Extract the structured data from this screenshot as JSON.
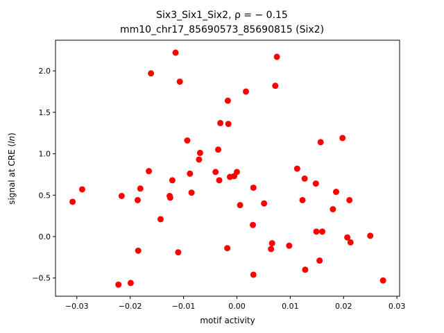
{
  "chart_data": {
    "type": "scatter",
    "title_line1": "Six3_Six1_Six2, ρ = − 0.15",
    "title_line2": "mm10_chr17_85690573_85690815 (Six2)",
    "xlabel": "motif activity",
    "ylabel": "signal at CRE (ln)",
    "xlim": [
      -0.034,
      0.0305
    ],
    "ylim": [
      -0.72,
      2.37
    ],
    "xticks": [
      -0.03,
      -0.02,
      -0.01,
      0.0,
      0.01,
      0.02,
      0.03
    ],
    "xtick_labels": [
      "−0.03",
      "−0.02",
      "−0.01",
      "0.00",
      "0.01",
      "0.02",
      "0.03"
    ],
    "yticks": [
      -0.5,
      0.0,
      0.5,
      1.0,
      1.5,
      2.0
    ],
    "ytick_labels": [
      "−0.5",
      "0.0",
      "0.5",
      "1.0",
      "1.5",
      "2.0"
    ],
    "marker_color": "#ff0000",
    "points": [
      {
        "x": -0.0308,
        "y": 0.42
      },
      {
        "x": -0.029,
        "y": 0.57
      },
      {
        "x": -0.0222,
        "y": -0.58
      },
      {
        "x": -0.0216,
        "y": 0.49
      },
      {
        "x": -0.0199,
        "y": -0.56
      },
      {
        "x": -0.0186,
        "y": 0.44
      },
      {
        "x": -0.0185,
        "y": -0.17
      },
      {
        "x": -0.0181,
        "y": 0.58
      },
      {
        "x": -0.0165,
        "y": 0.79
      },
      {
        "x": -0.0161,
        "y": 1.97
      },
      {
        "x": -0.0143,
        "y": 0.21
      },
      {
        "x": -0.0126,
        "y": 0.49
      },
      {
        "x": -0.0125,
        "y": 0.47
      },
      {
        "x": -0.0121,
        "y": 0.68
      },
      {
        "x": -0.0115,
        "y": 2.22
      },
      {
        "x": -0.011,
        "y": -0.19
      },
      {
        "x": -0.0107,
        "y": 1.87
      },
      {
        "x": -0.0093,
        "y": 1.16
      },
      {
        "x": -0.0088,
        "y": 0.76
      },
      {
        "x": -0.0085,
        "y": 0.53
      },
      {
        "x": -0.0071,
        "y": 0.93
      },
      {
        "x": -0.0069,
        "y": 1.01
      },
      {
        "x": -0.004,
        "y": 0.78
      },
      {
        "x": -0.0035,
        "y": 1.05
      },
      {
        "x": -0.0033,
        "y": 0.68
      },
      {
        "x": -0.0031,
        "y": 1.37
      },
      {
        "x": -0.0018,
        "y": -0.14
      },
      {
        "x": -0.0017,
        "y": 1.64
      },
      {
        "x": -0.0016,
        "y": 1.36
      },
      {
        "x": -0.0013,
        "y": 0.72
      },
      {
        "x": -0.0005,
        "y": 0.73
      },
      {
        "x": 0.0,
        "y": 0.78
      },
      {
        "x": 0.0006,
        "y": 0.38
      },
      {
        "x": 0.0017,
        "y": 1.75
      },
      {
        "x": 0.003,
        "y": 0.14
      },
      {
        "x": 0.0031,
        "y": 0.59
      },
      {
        "x": 0.0031,
        "y": -0.46
      },
      {
        "x": 0.0051,
        "y": 0.4
      },
      {
        "x": 0.0064,
        "y": -0.15
      },
      {
        "x": 0.0066,
        "y": -0.08
      },
      {
        "x": 0.0072,
        "y": 1.82
      },
      {
        "x": 0.0075,
        "y": 2.17
      },
      {
        "x": 0.0098,
        "y": -0.11
      },
      {
        "x": 0.0113,
        "y": 0.82
      },
      {
        "x": 0.0123,
        "y": 0.44
      },
      {
        "x": 0.0127,
        "y": 0.7
      },
      {
        "x": 0.0128,
        "y": -0.4
      },
      {
        "x": 0.0148,
        "y": 0.64
      },
      {
        "x": 0.0149,
        "y": 0.06
      },
      {
        "x": 0.0155,
        "y": -0.29
      },
      {
        "x": 0.0157,
        "y": 1.14
      },
      {
        "x": 0.016,
        "y": 0.06
      },
      {
        "x": 0.018,
        "y": 0.33
      },
      {
        "x": 0.0186,
        "y": 0.54
      },
      {
        "x": 0.0198,
        "y": 1.19
      },
      {
        "x": 0.0207,
        "y": -0.01
      },
      {
        "x": 0.0211,
        "y": 0.44
      },
      {
        "x": 0.0213,
        "y": -0.07
      },
      {
        "x": 0.025,
        "y": 0.01
      },
      {
        "x": 0.0274,
        "y": -0.53
      }
    ]
  }
}
